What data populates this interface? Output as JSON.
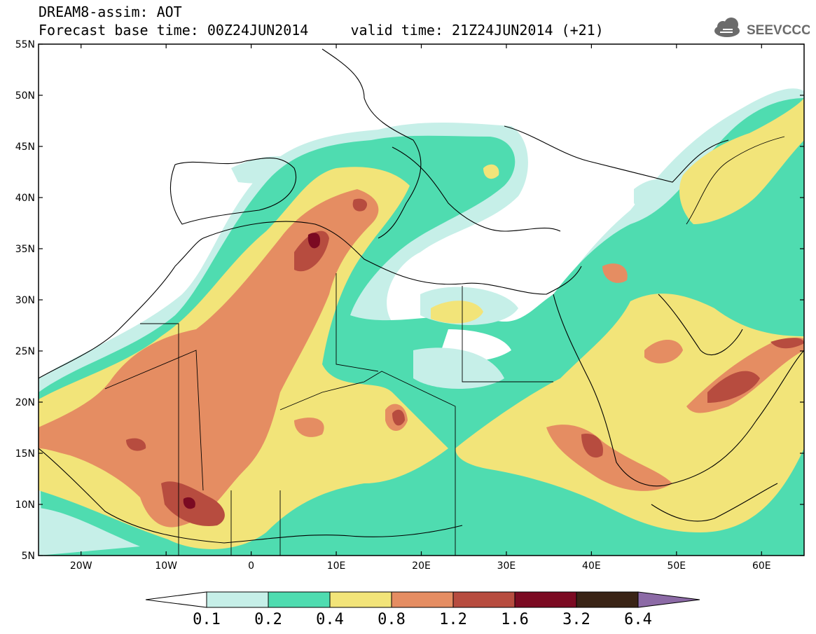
{
  "header": {
    "line1": "DREAM8-assim: AOT",
    "line2": "Forecast base time: 00Z24JUN2014     valid time: 21Z24JUN2014 (+21)"
  },
  "logo": {
    "text": "SEEVCCC",
    "icon": "cloud-icon"
  },
  "map": {
    "lat_labels": [
      "55N",
      "50N",
      "45N",
      "40N",
      "35N",
      "30N",
      "25N",
      "20N",
      "15N",
      "10N",
      "5N"
    ],
    "lon_labels": [
      "20W",
      "10W",
      "0",
      "10E",
      "20E",
      "30E",
      "40E",
      "50E",
      "60E"
    ],
    "lon_range": [
      -25,
      65
    ],
    "lat_range": [
      5,
      55
    ]
  },
  "colorbar": {
    "levels": [
      "0.1",
      "0.2",
      "0.4",
      "0.8",
      "1.2",
      "1.6",
      "3.2",
      "6.4"
    ],
    "colors": [
      "#c6efe8",
      "#4fdcb0",
      "#f2e479",
      "#e58d62",
      "#b74c3f",
      "#7b0a22",
      "#3a2416",
      "#8c6aa6"
    ],
    "under_color": "#ffffff"
  }
}
